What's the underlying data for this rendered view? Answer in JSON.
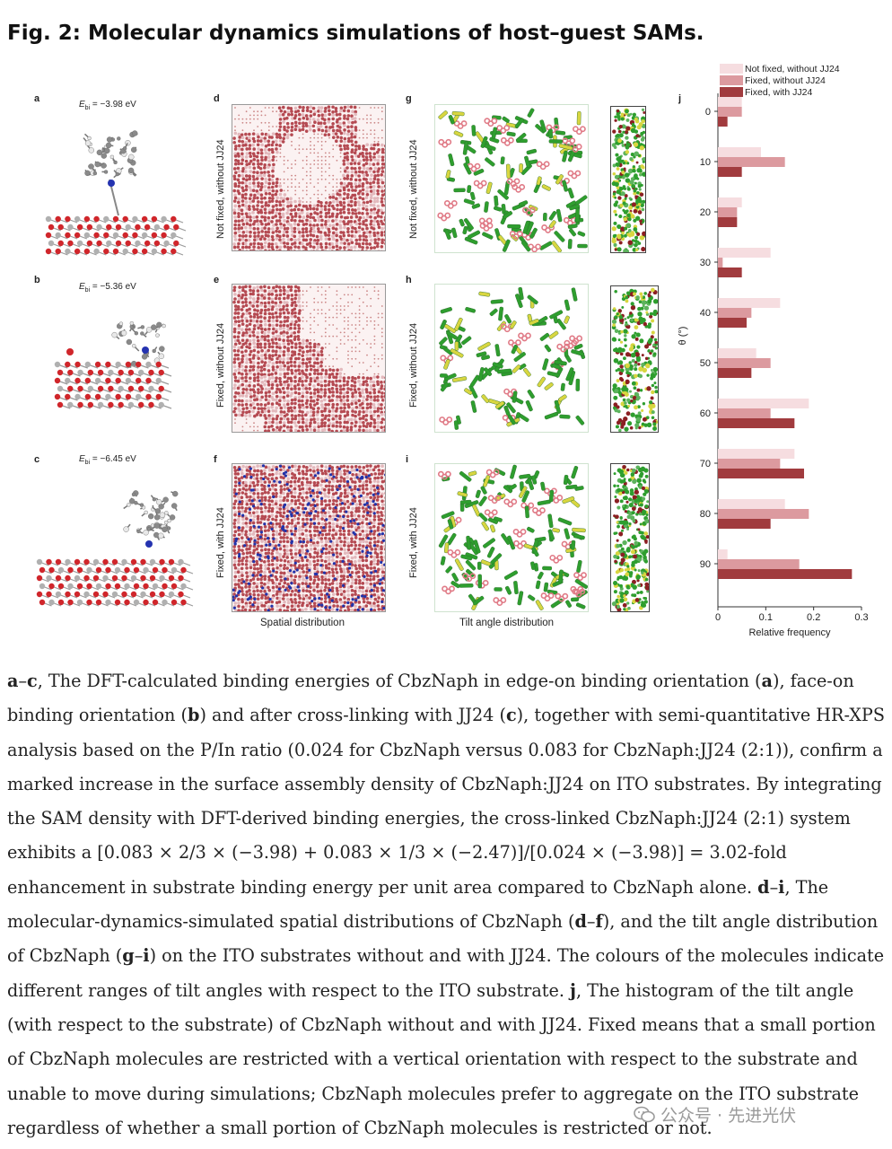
{
  "figure": {
    "title": "Fig. 2: Molecular dynamics simulations of host–guest SAMs.",
    "panel_letters": {
      "a": "a",
      "b": "b",
      "c": "c",
      "d": "d",
      "e": "e",
      "f": "f",
      "g": "g",
      "h": "h",
      "i": "i",
      "j": "j"
    },
    "energies": {
      "a": {
        "sym": "E",
        "sub": "bi",
        "rest": " = −3.98 eV"
      },
      "b": {
        "sym": "E",
        "sub": "bi",
        "rest": " = −5.36 eV"
      },
      "c": {
        "sym": "E",
        "sub": "bi",
        "rest": " = −6.45 eV"
      }
    },
    "row_labels": [
      "Not fixed, without JJ24",
      "Fixed, without JJ24",
      "Fixed, with JJ24"
    ],
    "spatial_label": "Spatial distribution",
    "tilt_label": "Tilt angle distribution",
    "colors": {
      "oxygen": "#d0262b",
      "metal": "#b0b0b0",
      "carbon": "#8a8a8a",
      "sam_dots": "#b54a52",
      "jj24": "#2233aa",
      "green": "#2e9e2e",
      "yellow": "#d8d640",
      "pink": "#e07a86",
      "darkred": "#8b1f22"
    }
  },
  "chart_data": {
    "type": "bar",
    "orientation": "horizontal",
    "categories": [
      0,
      10,
      20,
      30,
      40,
      50,
      60,
      70,
      80,
      90
    ],
    "series": [
      {
        "name": "Not fixed, without JJ24",
        "color": "#f6dde0",
        "values": [
          0.05,
          0.09,
          0.05,
          0.11,
          0.13,
          0.08,
          0.19,
          0.16,
          0.14,
          0.02
        ]
      },
      {
        "name": "Fixed, without JJ24",
        "color": "#dc9a9f",
        "values": [
          0.05,
          0.14,
          0.04,
          0.01,
          0.07,
          0.11,
          0.11,
          0.13,
          0.19,
          0.17
        ]
      },
      {
        "name": "Fixed, with JJ24",
        "color": "#a13b3e",
        "values": [
          0.02,
          0.05,
          0.04,
          0.05,
          0.06,
          0.07,
          0.16,
          0.18,
          0.11,
          0.28
        ]
      }
    ],
    "xlabel": "Relative frequency",
    "ylabel": "θ (°)",
    "xlim": [
      0,
      0.3
    ],
    "xticks": [
      "0",
      "0.1",
      "0.2",
      "0.3"
    ],
    "yticks": [
      "0",
      "10",
      "20",
      "30",
      "40",
      "50",
      "60",
      "70",
      "80",
      "90"
    ],
    "legend": "top",
    "grid": false
  },
  "caption": {
    "segments": [
      {
        "t": "a",
        "b": true
      },
      {
        "t": "–"
      },
      {
        "t": "c",
        "b": true
      },
      {
        "t": ", The DFT-calculated binding energies of CbzNaph in edge-on binding orientation ("
      },
      {
        "t": "a",
        "b": true
      },
      {
        "t": "), face-on binding orientation ("
      },
      {
        "t": "b",
        "b": true
      },
      {
        "t": ") and after cross-linking with JJ24 ("
      },
      {
        "t": "c",
        "b": true
      },
      {
        "t": "), together with semi-quantitative HR-XPS analysis based on the P/In ratio (0.024 for CbzNaph versus 0.083 for CbzNaph:JJ24 (2:1)), confirm a marked increase in the surface assembly density of CbzNaph:JJ24 on ITO substrates. By integrating the SAM density with DFT-derived binding energies, the cross-linked CbzNaph:JJ24 (2:1) system exhibits a [0.083 × 2/3 × (−3.98) + 0.083 × 1/3 × (−2.47)]/[0.024 × (−3.98)] = 3.02-fold enhancement in substrate binding energy per unit area compared to CbzNaph alone. "
      },
      {
        "t": "d",
        "b": true
      },
      {
        "t": "–"
      },
      {
        "t": "i",
        "b": true
      },
      {
        "t": ", The molecular-dynamics-simulated spatial distributions of CbzNaph ("
      },
      {
        "t": "d",
        "b": true
      },
      {
        "t": "–"
      },
      {
        "t": "f",
        "b": true
      },
      {
        "t": "), and the tilt angle distribution of CbzNaph ("
      },
      {
        "t": "g",
        "b": true
      },
      {
        "t": "–"
      },
      {
        "t": "i",
        "b": true
      },
      {
        "t": ") on the ITO substrates without and with JJ24. The colours of the molecules indicate different ranges of tilt angles with respect to the ITO substrate. "
      },
      {
        "t": "j",
        "b": true
      },
      {
        "t": ", The histogram of the tilt angle (with respect to the substrate) of CbzNaph without and with JJ24. Fixed means that a small portion of CbzNaph molecules are restricted with a vertical orientation with respect to the substrate and unable to move during simulations; CbzNaph molecules prefer to aggregate on the ITO substrate regardless of whether a small portion of CbzNaph molecules is restricted or not."
      }
    ]
  },
  "watermark": "公众号 · 先进光伏"
}
